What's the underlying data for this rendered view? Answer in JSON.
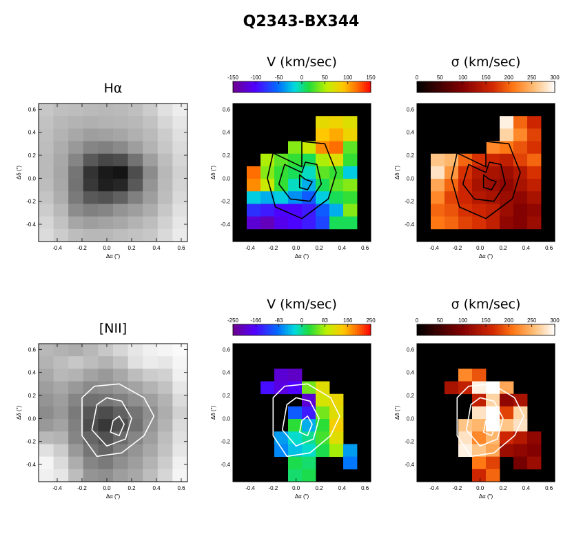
{
  "title": "Q2343-BX344",
  "chart_data": [
    {
      "type": "heatmap",
      "id": "ha-flux",
      "title": "Hα",
      "xlabel": "Δα (\")",
      "ylabel": "Δδ (\")",
      "xlim": [
        -0.55,
        0.65
      ],
      "ylim": [
        -0.55,
        0.65
      ],
      "xticks": [
        "-0.4",
        "-0.2",
        "0.0",
        "0.2",
        "0.4",
        "0.6"
      ],
      "yticks": [
        "-0.4",
        "-0.2",
        "0.0",
        "0.2",
        "0.4",
        "0.6"
      ],
      "colormap": "gray",
      "grid": [
        [
          0.78,
          0.75,
          0.74,
          0.73,
          0.72,
          0.73,
          0.75,
          0.8,
          0.88,
          0.93
        ],
        [
          0.76,
          0.72,
          0.7,
          0.69,
          0.7,
          0.71,
          0.72,
          0.76,
          0.84,
          0.9
        ],
        [
          0.75,
          0.7,
          0.66,
          0.62,
          0.63,
          0.65,
          0.69,
          0.73,
          0.8,
          0.88
        ],
        [
          0.74,
          0.68,
          0.6,
          0.52,
          0.5,
          0.54,
          0.62,
          0.7,
          0.78,
          0.86
        ],
        [
          0.73,
          0.66,
          0.52,
          0.35,
          0.28,
          0.3,
          0.45,
          0.62,
          0.74,
          0.84
        ],
        [
          0.73,
          0.65,
          0.46,
          0.2,
          0.1,
          0.08,
          0.3,
          0.55,
          0.72,
          0.82
        ],
        [
          0.74,
          0.66,
          0.45,
          0.22,
          0.12,
          0.15,
          0.35,
          0.58,
          0.73,
          0.83
        ],
        [
          0.77,
          0.68,
          0.48,
          0.35,
          0.32,
          0.38,
          0.5,
          0.62,
          0.74,
          0.85
        ],
        [
          0.8,
          0.72,
          0.55,
          0.5,
          0.52,
          0.58,
          0.62,
          0.68,
          0.78,
          0.88
        ],
        [
          0.84,
          0.76,
          0.65,
          0.62,
          0.64,
          0.66,
          0.7,
          0.74,
          0.82,
          0.9
        ],
        [
          0.86,
          0.8,
          0.74,
          0.72,
          0.72,
          0.74,
          0.76,
          0.78,
          0.85,
          0.92
        ]
      ]
    },
    {
      "type": "heatmap",
      "id": "ha-velocity",
      "title": "V (km/sec)",
      "xlabel": "Δα (\")",
      "ylabel": "Δδ (\")",
      "xlim": [
        -0.55,
        0.65
      ],
      "ylim": [
        -0.55,
        0.65
      ],
      "xticks": [
        "-0.4",
        "-0.2",
        "0.0",
        "0.2",
        "0.4",
        "0.6"
      ],
      "yticks": [
        "-0.4",
        "-0.2",
        "0.0",
        "0.2",
        "0.4",
        "0.6"
      ],
      "colormap": "rainbow",
      "colorbar": {
        "range": [
          -150,
          150
        ],
        "ticks": [
          "-150",
          "-100",
          "-50",
          "0",
          "50",
          "100",
          "150"
        ]
      },
      "grid": [
        [
          null,
          null,
          null,
          null,
          null,
          null,
          null,
          null,
          null,
          null
        ],
        [
          null,
          null,
          null,
          null,
          null,
          null,
          75,
          80,
          70,
          null
        ],
        [
          null,
          null,
          null,
          null,
          null,
          null,
          90,
          100,
          80,
          null
        ],
        [
          null,
          null,
          null,
          null,
          40,
          60,
          110,
          120,
          30,
          null
        ],
        [
          null,
          null,
          50,
          30,
          20,
          10,
          50,
          70,
          20,
          null
        ],
        [
          null,
          120,
          40,
          20,
          10,
          -10,
          30,
          20,
          -20,
          null
        ],
        [
          null,
          110,
          60,
          20,
          -10,
          -30,
          10,
          30,
          40,
          null
        ],
        [
          null,
          -20,
          -30,
          -20,
          -40,
          -60,
          -20,
          10,
          20,
          null
        ],
        [
          null,
          -80,
          -90,
          -100,
          -100,
          -90,
          -60,
          -30,
          40,
          null
        ],
        [
          null,
          -120,
          -130,
          -110,
          -100,
          -90,
          -70,
          10,
          10,
          null
        ],
        [
          null,
          null,
          null,
          null,
          null,
          null,
          null,
          null,
          null,
          null
        ]
      ],
      "contours": "Hα flux"
    },
    {
      "type": "heatmap",
      "id": "ha-dispersion",
      "title": "σ (km/sec)",
      "xlabel": "Δα (\")",
      "ylabel": "Δδ (\")",
      "xlim": [
        -0.55,
        0.65
      ],
      "ylim": [
        -0.55,
        0.65
      ],
      "xticks": [
        "-0.4",
        "-0.2",
        "0.0",
        "0.2",
        "0.4",
        "0.6"
      ],
      "yticks": [
        "-0.4",
        "-0.2",
        "0.0",
        "0.2",
        "0.4",
        "0.6"
      ],
      "colormap": "heat",
      "colorbar": {
        "range": [
          0,
          300
        ],
        "ticks": [
          "0",
          "50",
          "100",
          "150",
          "200",
          "250",
          "300"
        ]
      },
      "grid": [
        [
          null,
          null,
          null,
          null,
          null,
          null,
          null,
          null,
          null,
          null
        ],
        [
          null,
          null,
          null,
          null,
          null,
          null,
          290,
          200,
          160,
          null
        ],
        [
          null,
          null,
          null,
          null,
          null,
          null,
          270,
          220,
          180,
          null
        ],
        [
          null,
          null,
          null,
          null,
          null,
          220,
          210,
          190,
          170,
          null
        ],
        [
          null,
          260,
          250,
          200,
          170,
          160,
          150,
          180,
          200,
          null
        ],
        [
          null,
          280,
          230,
          170,
          140,
          130,
          120,
          140,
          170,
          null
        ],
        [
          null,
          240,
          200,
          160,
          130,
          120,
          110,
          130,
          150,
          null
        ],
        [
          null,
          220,
          180,
          160,
          140,
          130,
          120,
          110,
          130,
          null
        ],
        [
          null,
          200,
          190,
          170,
          160,
          150,
          120,
          100,
          110,
          null
        ],
        [
          null,
          210,
          200,
          180,
          170,
          150,
          110,
          100,
          120,
          null
        ],
        [
          null,
          null,
          null,
          null,
          null,
          null,
          null,
          null,
          null,
          null
        ]
      ],
      "contours": "Hα flux"
    },
    {
      "type": "heatmap",
      "id": "nii-flux",
      "title": "[NII]",
      "xlabel": "Δα (\")",
      "ylabel": "Δδ (\")",
      "xlim": [
        -0.55,
        0.65
      ],
      "ylim": [
        -0.55,
        0.65
      ],
      "xticks": [
        "-0.4",
        "-0.2",
        "0.0",
        "0.2",
        "0.4",
        "0.6"
      ],
      "yticks": [
        "-0.4",
        "-0.2",
        "0.0",
        "0.2",
        "0.4",
        "0.6"
      ],
      "colormap": "gray",
      "grid": [
        [
          0.72,
          0.7,
          0.68,
          0.72,
          0.78,
          0.84,
          0.9,
          0.94,
          0.96,
          0.98
        ],
        [
          0.7,
          0.74,
          0.78,
          0.74,
          0.7,
          0.76,
          0.88,
          0.92,
          0.9,
          0.96
        ],
        [
          0.66,
          0.72,
          0.7,
          0.64,
          0.6,
          0.66,
          0.74,
          0.8,
          0.82,
          0.94
        ],
        [
          0.62,
          0.66,
          0.6,
          0.54,
          0.56,
          0.6,
          0.64,
          0.7,
          0.76,
          0.9
        ],
        [
          0.58,
          0.62,
          0.52,
          0.44,
          0.46,
          0.5,
          0.56,
          0.62,
          0.7,
          0.86
        ],
        [
          0.55,
          0.6,
          0.48,
          0.34,
          0.3,
          0.38,
          0.46,
          0.56,
          0.68,
          0.82
        ],
        [
          0.6,
          0.64,
          0.5,
          0.3,
          0.22,
          0.3,
          0.44,
          0.58,
          0.7,
          0.86
        ],
        [
          0.72,
          0.7,
          0.52,
          0.4,
          0.32,
          0.42,
          0.52,
          0.62,
          0.74,
          0.88
        ],
        [
          0.88,
          0.8,
          0.6,
          0.46,
          0.4,
          0.5,
          0.58,
          0.66,
          0.76,
          0.9
        ],
        [
          0.96,
          0.86,
          0.68,
          0.52,
          0.48,
          0.56,
          0.62,
          0.7,
          0.8,
          0.94
        ],
        [
          0.94,
          0.9,
          0.74,
          0.58,
          0.56,
          0.62,
          0.66,
          0.74,
          0.84,
          0.96
        ]
      ],
      "contours": "[NII] flux"
    },
    {
      "type": "heatmap",
      "id": "nii-velocity",
      "title": "V (km/sec)",
      "xlabel": "Δα (\")",
      "ylabel": "Δδ (\")",
      "xlim": [
        -0.55,
        0.65
      ],
      "ylim": [
        -0.55,
        0.65
      ],
      "xticks": [
        "-0.4",
        "-0.2",
        "0.0",
        "0.2",
        "0.4",
        "0.6"
      ],
      "yticks": [
        "-0.4",
        "-0.2",
        "0.0",
        "0.2",
        "0.4",
        "0.6"
      ],
      "colormap": "rainbow",
      "colorbar": {
        "range": [
          -250,
          250
        ],
        "ticks": [
          "-250",
          "-166",
          "-83",
          "0",
          "83",
          "166",
          "250"
        ]
      },
      "grid": [
        [
          null,
          null,
          null,
          null,
          null,
          null,
          null,
          null,
          null,
          null
        ],
        [
          null,
          null,
          null,
          null,
          null,
          null,
          null,
          null,
          null,
          null
        ],
        [
          null,
          null,
          null,
          -200,
          -210,
          null,
          null,
          null,
          null,
          null
        ],
        [
          null,
          null,
          -160,
          -190,
          -170,
          60,
          120,
          null,
          null,
          null
        ],
        [
          null,
          null,
          null,
          null,
          null,
          -200,
          110,
          130,
          null,
          null
        ],
        [
          null,
          null,
          null,
          null,
          -100,
          -150,
          60,
          120,
          null,
          null
        ],
        [
          null,
          null,
          null,
          null,
          30,
          -50,
          30,
          140,
          null,
          null
        ],
        [
          null,
          null,
          null,
          -60,
          -20,
          0,
          40,
          120,
          null,
          null
        ],
        [
          null,
          null,
          null,
          -70,
          -40,
          -20,
          20,
          80,
          -60,
          null
        ],
        [
          null,
          null,
          null,
          null,
          20,
          10,
          null,
          null,
          -80,
          null
        ],
        [
          null,
          null,
          null,
          null,
          10,
          20,
          null,
          null,
          null,
          null
        ]
      ],
      "contours": "[NII] flux"
    },
    {
      "type": "heatmap",
      "id": "nii-dispersion",
      "title": "σ (km/sec)",
      "xlabel": "Δα (\")",
      "ylabel": "Δδ (\")",
      "xlim": [
        -0.55,
        0.65
      ],
      "ylim": [
        -0.55,
        0.65
      ],
      "xticks": [
        "-0.4",
        "-0.2",
        "0.0",
        "0.2",
        "0.4",
        "0.6"
      ],
      "yticks": [
        "-0.4",
        "-0.2",
        "0.0",
        "0.2",
        "0.4",
        "0.6"
      ],
      "colormap": "heat",
      "colorbar": {
        "range": [
          0,
          300
        ],
        "ticks": [
          "0",
          "50",
          "100",
          "150",
          "200",
          "250",
          "300"
        ]
      },
      "grid": [
        [
          null,
          null,
          null,
          null,
          null,
          null,
          null,
          null,
          null,
          null
        ],
        [
          null,
          null,
          null,
          null,
          null,
          null,
          null,
          null,
          null,
          null
        ],
        [
          null,
          null,
          null,
          220,
          190,
          null,
          null,
          null,
          null,
          null
        ],
        [
          null,
          null,
          130,
          150,
          290,
          300,
          240,
          null,
          null,
          null
        ],
        [
          null,
          null,
          null,
          null,
          150,
          270,
          110,
          130,
          null,
          null
        ],
        [
          null,
          null,
          null,
          null,
          280,
          300,
          180,
          270,
          null,
          null
        ],
        [
          null,
          null,
          null,
          260,
          250,
          300,
          260,
          280,
          null,
          null
        ],
        [
          null,
          null,
          null,
          280,
          220,
          250,
          160,
          140,
          110,
          null
        ],
        [
          null,
          null,
          null,
          290,
          260,
          240,
          120,
          110,
          100,
          null
        ],
        [
          null,
          null,
          null,
          null,
          210,
          180,
          null,
          90,
          120,
          null
        ],
        [
          null,
          null,
          null,
          null,
          160,
          200,
          null,
          null,
          null,
          null
        ]
      ],
      "contours": "[NII] flux"
    }
  ]
}
